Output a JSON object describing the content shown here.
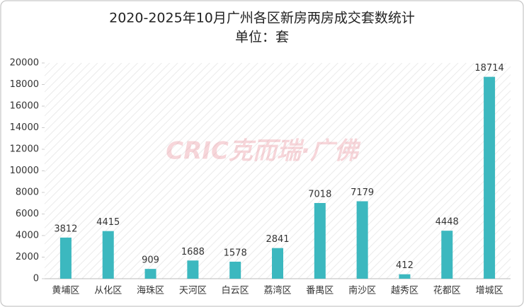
{
  "chart_data": {
    "type": "bar",
    "title": "2020-2025年10月广州各区新房两房成交套数统计",
    "subtitle": "单位：套",
    "watermark": "CRIC克而瑞·广佛",
    "categories": [
      "黄埔区",
      "从化区",
      "海珠区",
      "天河区",
      "白云区",
      "荔湾区",
      "番禺区",
      "南沙区",
      "越秀区",
      "花都区",
      "增城区"
    ],
    "values": [
      3812,
      4415,
      909,
      1688,
      1578,
      2841,
      7018,
      7179,
      412,
      4448,
      18714
    ],
    "color": "#3cb8bf",
    "ylim": [
      0,
      20000
    ],
    "yticks": [
      0,
      2000,
      4000,
      6000,
      8000,
      10000,
      12000,
      14000,
      16000,
      18000,
      20000
    ]
  }
}
